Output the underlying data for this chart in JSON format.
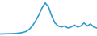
{
  "x": [
    0,
    1,
    2,
    3,
    4,
    5,
    6,
    7,
    8,
    9,
    10,
    11,
    12,
    13,
    14,
    15,
    16,
    17,
    18,
    19,
    20,
    21,
    22,
    23,
    24,
    25,
    26,
    27,
    28,
    29,
    30
  ],
  "y": [
    1,
    1.1,
    1.2,
    1.3,
    1.4,
    1.6,
    2.0,
    2.5,
    3.5,
    5.5,
    9,
    14,
    20,
    27,
    32,
    28,
    19,
    12,
    9,
    8,
    9,
    7,
    8,
    10,
    8,
    9,
    12,
    9,
    11,
    8,
    7
  ],
  "line_color": "#3399cc",
  "linewidth": 1.2,
  "background_color": "#ffffff",
  "ylim": [
    -1,
    35
  ],
  "xlim": [
    0,
    30
  ]
}
